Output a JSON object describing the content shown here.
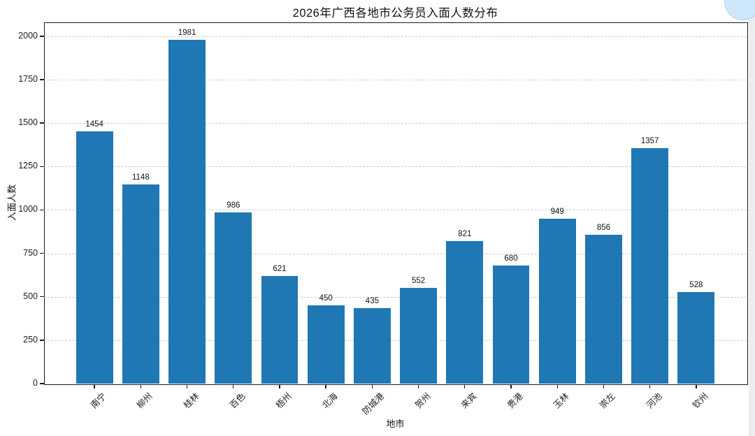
{
  "page": {
    "title": "2026年广西各地市公务员入面人数分布"
  },
  "chart_data": {
    "type": "bar",
    "title": "2026年广西各地市公务员入面人数分布",
    "xlabel": "地市",
    "ylabel": "入面人数",
    "categories": [
      "南宁",
      "柳州",
      "桂林",
      "百色",
      "梧州",
      "北海",
      "防城港",
      "贺州",
      "来宾",
      "贵港",
      "玉林",
      "崇左",
      "河池",
      "钦州"
    ],
    "values": [
      1454,
      1148,
      1981,
      986,
      621,
      450,
      435,
      552,
      821,
      680,
      949,
      856,
      1357,
      528
    ],
    "yticks": [
      0,
      250,
      500,
      750,
      1000,
      1250,
      1500,
      1750,
      2000
    ],
    "ylim": [
      0,
      2080
    ],
    "grid": "horizontal-dashed",
    "legend": "none",
    "value_labels": true,
    "bar_color": "#1f77b4",
    "gridline_color": "#cccccc",
    "spine_color": "#1a1a1a"
  },
  "decor": {
    "corner_icon": "blue-orb-icon"
  }
}
